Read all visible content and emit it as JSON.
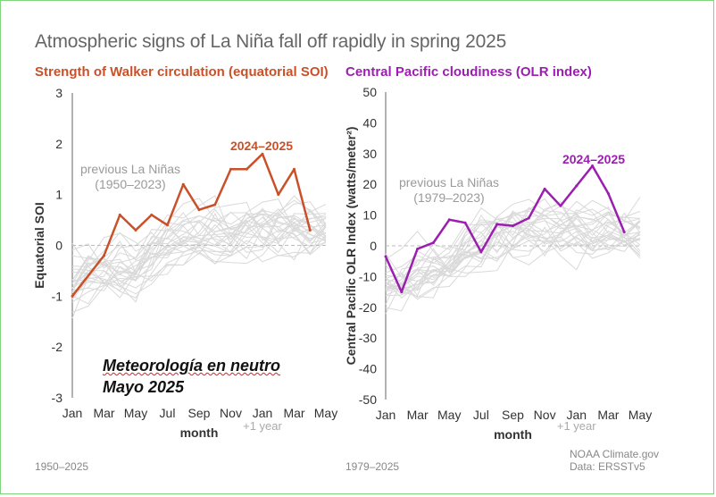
{
  "title": "Atmospheric signs of La Niña fall off rapidly in spring 2025",
  "chart_data": [
    {
      "type": "line",
      "title": "Strength of Walker circulation (equatorial SOI)",
      "xlabel": "month",
      "ylabel": "Equatorial SOI",
      "x_ticks": [
        "Jan",
        "Mar",
        "May",
        "Jul",
        "Sep",
        "Nov",
        "Jan",
        "Mar",
        "May"
      ],
      "x_note": "+1 year",
      "ylim": [
        -3,
        3
      ],
      "y_ticks": [
        "3",
        "2",
        "1",
        "0",
        "-1",
        "-2",
        "-3"
      ],
      "zero_line": true,
      "highlight": {
        "name": "2024–2025",
        "color": "#c9512a",
        "x": [
          1,
          3,
          4,
          5,
          6,
          7,
          8,
          9,
          10,
          11,
          12,
          13,
          14,
          15,
          16,
          17
        ],
        "values": [
          -1.0,
          -0.2,
          0.6,
          0.3,
          0.6,
          0.4,
          1.2,
          0.7,
          0.8,
          1.5,
          1.5,
          1.8,
          1.0,
          1.5,
          0.3,
          null
        ]
      },
      "background_label": "previous La Niñas",
      "background_years": "(1950–2023)",
      "footer": "1950–2025"
    },
    {
      "type": "line",
      "title": "Central Pacific cloudiness (OLR index)",
      "xlabel": "month",
      "ylabel": "Central Pacific OLR Index (watts/meter²)",
      "x_ticks": [
        "Jan",
        "Mar",
        "May",
        "Jul",
        "Sep",
        "Nov",
        "Jan",
        "Mar",
        "May"
      ],
      "x_note": "+1 year",
      "ylim": [
        -50,
        50
      ],
      "y_ticks": [
        "50",
        "40",
        "30",
        "20",
        "10",
        "0",
        "-10",
        "-20",
        "-30",
        "-40",
        "-50"
      ],
      "zero_line": true,
      "highlight": {
        "name": "2024–2025",
        "color": "#9b1fae",
        "x": [
          1,
          2,
          3,
          4,
          5,
          6,
          7,
          8,
          9,
          10,
          11,
          12,
          13,
          14,
          15,
          16
        ],
        "values": [
          -3.5,
          -15,
          -1,
          1,
          8.5,
          7.5,
          -2,
          7,
          6.5,
          9,
          18.5,
          13,
          19.5,
          26,
          17,
          4.5
        ]
      },
      "background_label": "previous La Niñas",
      "background_years": "(1979–2023)",
      "footer": "1979–2025"
    }
  ],
  "credits": {
    "line1": "NOAA Climate.gov",
    "line2": "Data: ERSSTv5"
  },
  "overlay_text": {
    "line1": "Meteorología en neutro",
    "line2": "Mayo 2025"
  },
  "colors": {
    "ghost_line": "#d9d9d9",
    "grid_zero": "#bbbbbb",
    "axis": "#666666"
  }
}
